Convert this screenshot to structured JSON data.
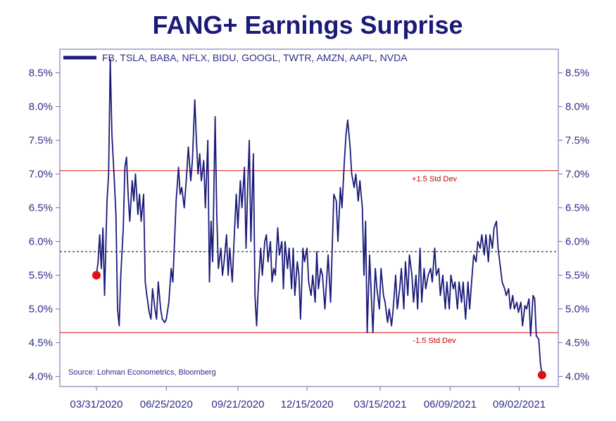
{
  "chart_data": {
    "type": "line",
    "title": "FANG+ Earnings Surprise",
    "xlabel": "",
    "ylabel": "",
    "ylim": [
      3.85,
      8.85
    ],
    "y_ticks": [
      "8.5%",
      "8.0%",
      "7.5%",
      "7.0%",
      "6.5%",
      "6.0%",
      "5.5%",
      "5.0%",
      "4.5%",
      "4.0%"
    ],
    "y_tick_values": [
      8.5,
      8.0,
      7.5,
      7.0,
      6.5,
      6.0,
      5.5,
      5.0,
      4.5,
      4.0
    ],
    "x_ticks": [
      "03/31/2020",
      "06/25/2020",
      "09/21/2020",
      "12/15/2020",
      "03/15/2021",
      "06/09/2021",
      "09/02/2021"
    ],
    "x_range": [
      "2020-02-15",
      "2021-10-20"
    ],
    "legend_position": "top-left",
    "grid": false,
    "series": [
      {
        "name": "FB, TSLA, BABA, NFLX, BIDU, GOOGL, TWTR, AMZN, AAPL, NVDA",
        "color": "#1a1a7a",
        "points": [
          [
            "2020-03-31",
            5.5
          ],
          [
            "2020-04-02",
            5.7
          ],
          [
            "2020-04-04",
            6.1
          ],
          [
            "2020-04-06",
            5.6
          ],
          [
            "2020-04-08",
            6.2
          ],
          [
            "2020-04-10",
            5.2
          ],
          [
            "2020-04-13",
            6.6
          ],
          [
            "2020-04-15",
            7.0
          ],
          [
            "2020-04-17",
            8.7
          ],
          [
            "2020-04-19",
            7.6
          ],
          [
            "2020-04-22",
            6.9
          ],
          [
            "2020-04-24",
            6.4
          ],
          [
            "2020-04-26",
            5.0
          ],
          [
            "2020-04-28",
            4.75
          ],
          [
            "2020-04-30",
            5.5
          ],
          [
            "2020-05-03",
            6.2
          ],
          [
            "2020-05-05",
            7.1
          ],
          [
            "2020-05-07",
            7.25
          ],
          [
            "2020-05-09",
            6.7
          ],
          [
            "2020-05-11",
            6.3
          ],
          [
            "2020-05-14",
            6.9
          ],
          [
            "2020-05-16",
            6.6
          ],
          [
            "2020-05-18",
            7.0
          ],
          [
            "2020-05-21",
            6.4
          ],
          [
            "2020-05-23",
            6.7
          ],
          [
            "2020-05-25",
            6.3
          ],
          [
            "2020-05-28",
            6.7
          ],
          [
            "2020-05-30",
            5.4
          ],
          [
            "2020-06-01",
            5.2
          ],
          [
            "2020-06-04",
            4.95
          ],
          [
            "2020-06-06",
            4.85
          ],
          [
            "2020-06-08",
            5.3
          ],
          [
            "2020-06-11",
            5.0
          ],
          [
            "2020-06-13",
            4.85
          ],
          [
            "2020-06-15",
            5.4
          ],
          [
            "2020-06-18",
            5.0
          ],
          [
            "2020-06-20",
            4.85
          ],
          [
            "2020-06-23",
            4.8
          ],
          [
            "2020-06-25",
            4.85
          ],
          [
            "2020-06-28",
            5.1
          ],
          [
            "2020-07-01",
            5.6
          ],
          [
            "2020-07-03",
            5.4
          ],
          [
            "2020-07-05",
            6.0
          ],
          [
            "2020-07-07",
            6.6
          ],
          [
            "2020-07-10",
            7.1
          ],
          [
            "2020-07-12",
            6.7
          ],
          [
            "2020-07-14",
            6.8
          ],
          [
            "2020-07-17",
            6.5
          ],
          [
            "2020-07-20",
            7.0
          ],
          [
            "2020-07-22",
            7.4
          ],
          [
            "2020-07-25",
            6.9
          ],
          [
            "2020-07-27",
            7.2
          ],
          [
            "2020-07-30",
            8.1
          ],
          [
            "2020-08-01",
            7.5
          ],
          [
            "2020-08-03",
            7.0
          ],
          [
            "2020-08-05",
            7.3
          ],
          [
            "2020-08-07",
            6.9
          ],
          [
            "2020-08-10",
            7.2
          ],
          [
            "2020-08-12",
            6.5
          ],
          [
            "2020-08-15",
            7.5
          ],
          [
            "2020-08-17",
            5.4
          ],
          [
            "2020-08-19",
            6.3
          ],
          [
            "2020-08-21",
            5.7
          ],
          [
            "2020-08-24",
            7.85
          ],
          [
            "2020-08-26",
            6.4
          ],
          [
            "2020-08-28",
            5.6
          ],
          [
            "2020-08-31",
            5.9
          ],
          [
            "2020-09-02",
            5.5
          ],
          [
            "2020-09-04",
            5.7
          ],
          [
            "2020-09-07",
            6.1
          ],
          [
            "2020-09-09",
            5.5
          ],
          [
            "2020-09-11",
            5.9
          ],
          [
            "2020-09-14",
            5.4
          ],
          [
            "2020-09-17",
            6.2
          ],
          [
            "2020-09-19",
            6.7
          ],
          [
            "2020-09-21",
            6.2
          ],
          [
            "2020-09-24",
            6.9
          ],
          [
            "2020-09-26",
            6.5
          ],
          [
            "2020-09-29",
            7.1
          ],
          [
            "2020-10-01",
            5.9
          ],
          [
            "2020-10-03",
            6.8
          ],
          [
            "2020-10-05",
            7.5
          ],
          [
            "2020-10-07",
            6.0
          ],
          [
            "2020-10-10",
            7.3
          ],
          [
            "2020-10-12",
            5.2
          ],
          [
            "2020-10-14",
            4.75
          ],
          [
            "2020-10-16",
            5.3
          ],
          [
            "2020-10-19",
            5.9
          ],
          [
            "2020-10-21",
            5.5
          ],
          [
            "2020-10-24",
            6.0
          ],
          [
            "2020-10-26",
            6.1
          ],
          [
            "2020-10-28",
            5.7
          ],
          [
            "2020-10-31",
            6.0
          ],
          [
            "2020-11-02",
            5.4
          ],
          [
            "2020-11-04",
            5.6
          ],
          [
            "2020-11-06",
            5.5
          ],
          [
            "2020-11-09",
            6.2
          ],
          [
            "2020-11-11",
            5.8
          ],
          [
            "2020-11-14",
            6.0
          ],
          [
            "2020-11-16",
            5.3
          ],
          [
            "2020-11-18",
            6.0
          ],
          [
            "2020-11-21",
            5.6
          ],
          [
            "2020-11-23",
            5.9
          ],
          [
            "2020-11-26",
            5.3
          ],
          [
            "2020-11-28",
            5.9
          ],
          [
            "2020-11-30",
            5.2
          ],
          [
            "2020-12-03",
            5.7
          ],
          [
            "2020-12-05",
            5.5
          ],
          [
            "2020-12-07",
            4.85
          ],
          [
            "2020-12-10",
            5.9
          ],
          [
            "2020-12-12",
            5.7
          ],
          [
            "2020-12-15",
            5.9
          ],
          [
            "2020-12-17",
            5.4
          ],
          [
            "2020-12-20",
            5.2
          ],
          [
            "2020-12-22",
            5.5
          ],
          [
            "2020-12-25",
            5.1
          ],
          [
            "2020-12-27",
            5.85
          ],
          [
            "2020-12-29",
            5.3
          ],
          [
            "2021-01-01",
            5.6
          ],
          [
            "2021-01-03",
            5.5
          ],
          [
            "2021-01-06",
            5.0
          ],
          [
            "2021-01-08",
            5.4
          ],
          [
            "2021-01-10",
            5.8
          ],
          [
            "2021-01-13",
            5.1
          ],
          [
            "2021-01-15",
            5.9
          ],
          [
            "2021-01-17",
            6.7
          ],
          [
            "2021-01-20",
            6.6
          ],
          [
            "2021-01-22",
            6.0
          ],
          [
            "2021-01-25",
            6.8
          ],
          [
            "2021-01-27",
            6.5
          ],
          [
            "2021-01-30",
            7.2
          ],
          [
            "2021-02-01",
            7.6
          ],
          [
            "2021-02-03",
            7.8
          ],
          [
            "2021-02-06",
            7.4
          ],
          [
            "2021-02-08",
            7.0
          ],
          [
            "2021-02-11",
            6.8
          ],
          [
            "2021-02-13",
            7.0
          ],
          [
            "2021-02-16",
            6.6
          ],
          [
            "2021-02-18",
            6.9
          ],
          [
            "2021-02-21",
            6.5
          ],
          [
            "2021-02-23",
            5.5
          ],
          [
            "2021-02-25",
            6.3
          ],
          [
            "2021-02-27",
            4.65
          ],
          [
            "2021-03-02",
            5.8
          ],
          [
            "2021-03-04",
            5.2
          ],
          [
            "2021-03-06",
            4.65
          ],
          [
            "2021-03-09",
            5.6
          ],
          [
            "2021-03-11",
            5.3
          ],
          [
            "2021-03-14",
            5.0
          ],
          [
            "2021-03-16",
            5.6
          ],
          [
            "2021-03-19",
            5.2
          ],
          [
            "2021-03-21",
            5.1
          ],
          [
            "2021-03-24",
            4.8
          ],
          [
            "2021-03-26",
            5.0
          ],
          [
            "2021-03-29",
            4.75
          ],
          [
            "2021-03-31",
            5.0
          ],
          [
            "2021-04-03",
            5.5
          ],
          [
            "2021-04-05",
            5.0
          ],
          [
            "2021-04-08",
            5.3
          ],
          [
            "2021-04-10",
            5.6
          ],
          [
            "2021-04-13",
            5.0
          ],
          [
            "2021-04-15",
            5.7
          ],
          [
            "2021-04-18",
            5.2
          ],
          [
            "2021-04-20",
            5.8
          ],
          [
            "2021-04-23",
            5.5
          ],
          [
            "2021-04-25",
            5.1
          ],
          [
            "2021-04-28",
            5.5
          ],
          [
            "2021-04-30",
            5.0
          ],
          [
            "2021-05-03",
            5.9
          ],
          [
            "2021-05-05",
            5.1
          ],
          [
            "2021-05-08",
            5.6
          ],
          [
            "2021-05-10",
            5.3
          ],
          [
            "2021-05-13",
            5.5
          ],
          [
            "2021-05-16",
            5.6
          ],
          [
            "2021-05-18",
            5.4
          ],
          [
            "2021-05-21",
            5.9
          ],
          [
            "2021-05-23",
            5.5
          ],
          [
            "2021-05-26",
            5.6
          ],
          [
            "2021-05-28",
            5.2
          ],
          [
            "2021-05-31",
            5.5
          ],
          [
            "2021-06-03",
            5.0
          ],
          [
            "2021-06-05",
            5.4
          ],
          [
            "2021-06-08",
            5.0
          ],
          [
            "2021-06-10",
            5.5
          ],
          [
            "2021-06-13",
            5.3
          ],
          [
            "2021-06-15",
            5.4
          ],
          [
            "2021-06-18",
            5.0
          ],
          [
            "2021-06-20",
            5.4
          ],
          [
            "2021-06-23",
            5.1
          ],
          [
            "2021-06-25",
            5.4
          ],
          [
            "2021-06-28",
            4.85
          ],
          [
            "2021-07-01",
            5.4
          ],
          [
            "2021-07-03",
            5.0
          ],
          [
            "2021-07-06",
            5.5
          ],
          [
            "2021-07-08",
            5.8
          ],
          [
            "2021-07-11",
            5.7
          ],
          [
            "2021-07-13",
            6.0
          ],
          [
            "2021-07-16",
            5.9
          ],
          [
            "2021-07-18",
            6.1
          ],
          [
            "2021-07-21",
            5.8
          ],
          [
            "2021-07-23",
            6.1
          ],
          [
            "2021-07-26",
            5.7
          ],
          [
            "2021-07-28",
            6.1
          ],
          [
            "2021-07-31",
            5.9
          ],
          [
            "2021-08-02",
            6.2
          ],
          [
            "2021-08-05",
            6.3
          ],
          [
            "2021-08-07",
            5.9
          ],
          [
            "2021-08-10",
            5.6
          ],
          [
            "2021-08-12",
            5.4
          ],
          [
            "2021-08-15",
            5.3
          ],
          [
            "2021-08-17",
            5.2
          ],
          [
            "2021-08-20",
            5.3
          ],
          [
            "2021-08-22",
            5.0
          ],
          [
            "2021-08-25",
            5.2
          ],
          [
            "2021-08-27",
            5.0
          ],
          [
            "2021-08-30",
            5.1
          ],
          [
            "2021-09-01",
            4.95
          ],
          [
            "2021-09-04",
            5.1
          ],
          [
            "2021-09-06",
            4.75
          ],
          [
            "2021-09-09",
            5.05
          ],
          [
            "2021-09-11",
            5.0
          ],
          [
            "2021-09-14",
            5.15
          ],
          [
            "2021-09-16",
            4.6
          ],
          [
            "2021-09-19",
            5.2
          ],
          [
            "2021-09-21",
            5.15
          ],
          [
            "2021-09-23",
            4.6
          ],
          [
            "2021-09-26",
            4.55
          ],
          [
            "2021-09-28",
            4.2
          ],
          [
            "2021-09-30",
            4.02
          ]
        ]
      }
    ],
    "reference_lines": [
      {
        "value": 7.05,
        "style": "solid",
        "color": "#dd1111",
        "label": "+1.5 Std Dev"
      },
      {
        "value": 5.85,
        "style": "dashed",
        "color": "#000000",
        "label": ""
      },
      {
        "value": 4.65,
        "style": "solid",
        "color": "#dd1111",
        "label": "-1.5 Std Dev"
      }
    ],
    "markers": [
      {
        "x": "2020-03-31",
        "y": 5.5,
        "color": "#dd1111"
      },
      {
        "x": "2021-09-30",
        "y": 4.02,
        "color": "#dd1111"
      }
    ],
    "source": "Source: Lohman Econometrics, Bloomberg"
  }
}
